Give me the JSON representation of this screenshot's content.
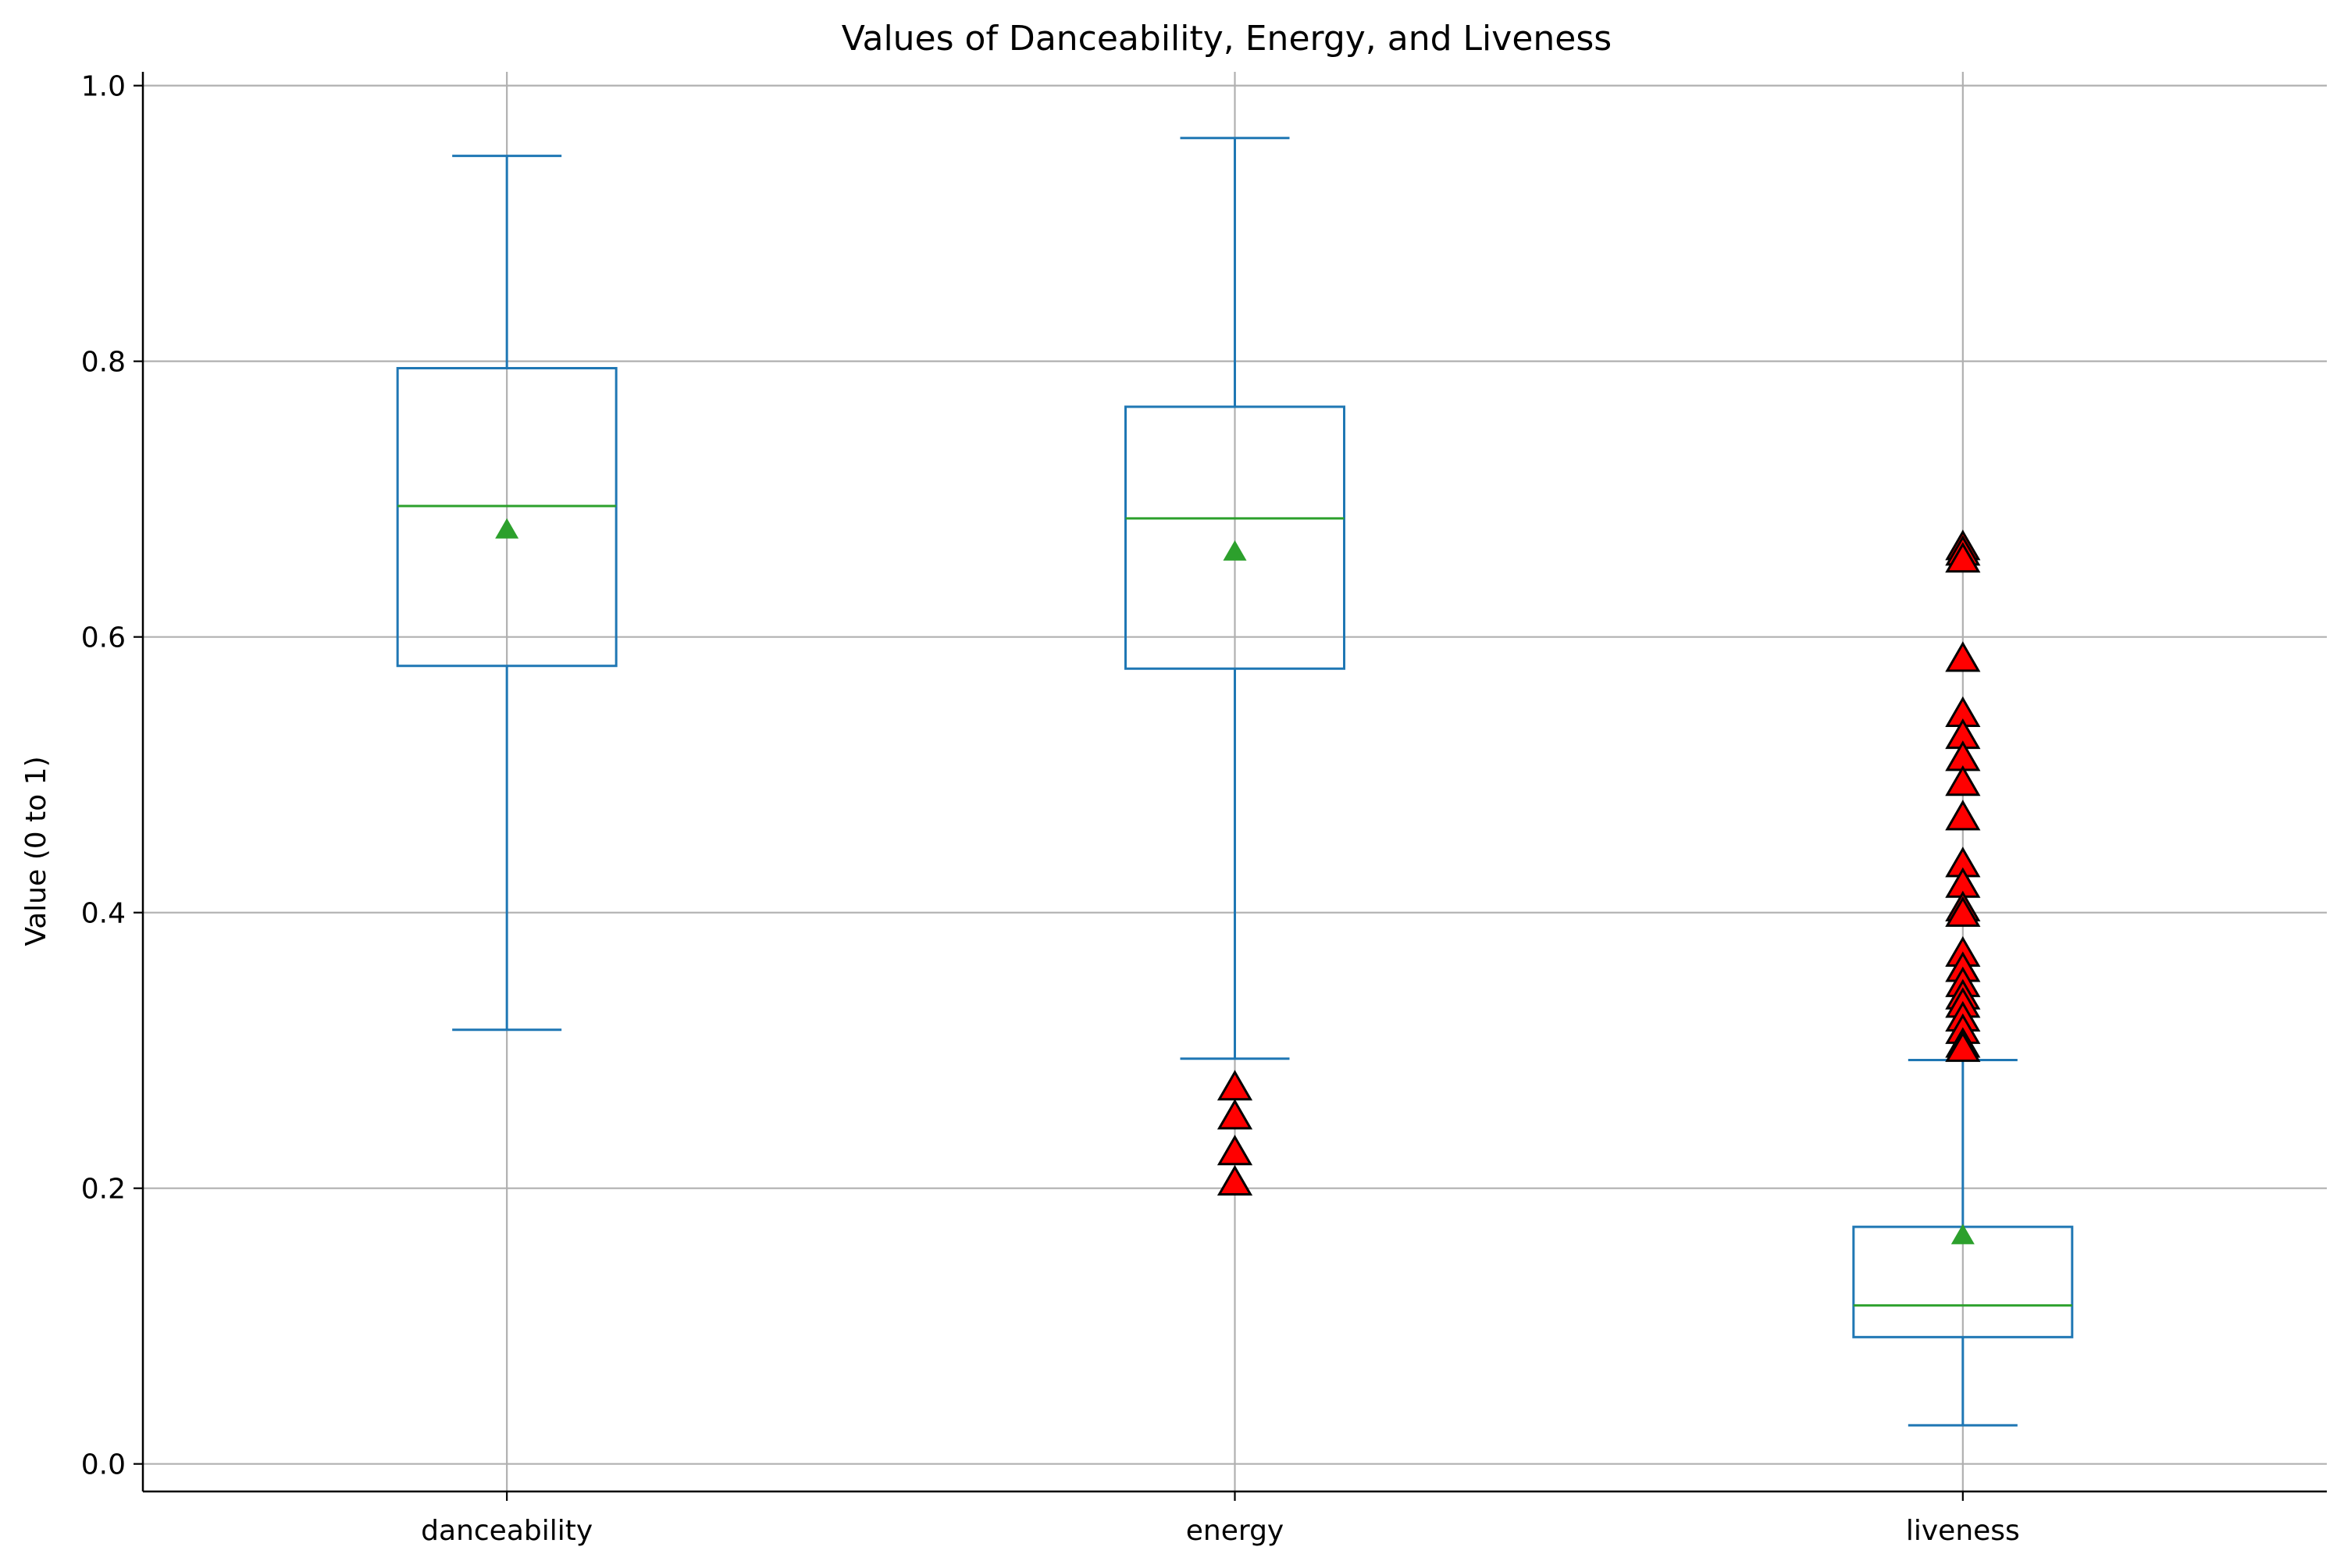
{
  "chart_data": {
    "type": "box",
    "title": "Values of Danceability, Energy, and Liveness",
    "xlabel": "",
    "ylabel": "Value (0 to 1)",
    "ylim": [
      -0.02,
      1.01
    ],
    "yticks": [
      0.0,
      0.2,
      0.4,
      0.6,
      0.8,
      1.0
    ],
    "ytick_labels": [
      "0.0",
      "0.2",
      "0.4",
      "0.6",
      "0.8",
      "1.0"
    ],
    "grid": true,
    "categories": [
      "danceability",
      "energy",
      "liveness"
    ],
    "boxes": [
      {
        "name": "danceability",
        "whisker_low": 0.315,
        "q1": 0.579,
        "median": 0.695,
        "q3": 0.795,
        "whisker_high": 0.949,
        "mean": 0.677,
        "outliers": []
      },
      {
        "name": "energy",
        "whisker_low": 0.294,
        "q1": 0.577,
        "median": 0.686,
        "q3": 0.767,
        "whisker_high": 0.962,
        "mean": 0.661,
        "outliers": [
          0.272,
          0.251,
          0.225,
          0.203
        ]
      },
      {
        "name": "liveness",
        "whisker_low": 0.028,
        "q1": 0.092,
        "median": 0.115,
        "q3": 0.172,
        "whisker_high": 0.293,
        "mean": 0.165,
        "outliers": [
          0.664,
          0.66,
          0.655,
          0.583,
          0.543,
          0.527,
          0.511,
          0.493,
          0.468,
          0.434,
          0.419,
          0.402,
          0.398,
          0.369,
          0.358,
          0.347,
          0.338,
          0.332,
          0.322,
          0.313,
          0.303,
          0.3
        ]
      }
    ],
    "colors": {
      "box": "#1f77b4",
      "median": "#2ca02c",
      "mean_marker": "#2ca02c",
      "outlier_fill": "#ff0000",
      "outlier_edge": "#000000",
      "grid": "#b0b0b0"
    }
  }
}
